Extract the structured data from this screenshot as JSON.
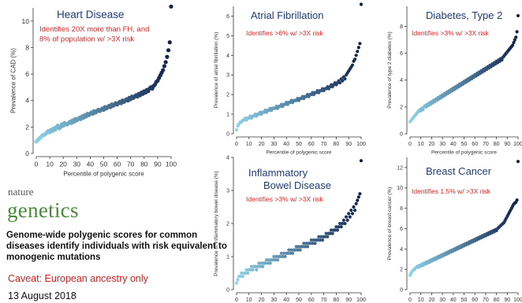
{
  "side": {
    "logo_line1": "nature",
    "logo_line2": "genetics",
    "paper_title": "Genome-wide polygenic scores for common diseases identify individuals with risk equivalent to monogenic mutations",
    "caveat": "Caveat: European ancestry only",
    "date": "13 August 2018"
  },
  "chart_data": [
    {
      "type": "scatter",
      "title": "Heart Disease",
      "annotation": "Identifies 20X more than FH, and 8% of population w/ >3X risk",
      "xlabel": "Percentile of polygenic score",
      "ylabel": "Prevalence of CAD (%)",
      "xlim": [
        0,
        100
      ],
      "ylim": [
        0,
        11
      ],
      "xticks": [
        0,
        10,
        20,
        30,
        40,
        50,
        60,
        70,
        80,
        90,
        100
      ],
      "yticks": [
        0,
        2,
        4,
        6,
        8,
        10
      ],
      "y": [
        0.9,
        1.0,
        1.1,
        1.2,
        1.3,
        1.4,
        1.4,
        1.5,
        1.6,
        1.7,
        1.6,
        1.8,
        1.7,
        1.9,
        1.8,
        2.0,
        2.1,
        1.9,
        2.0,
        2.2,
        2.1,
        2.3,
        2.2,
        2.2,
        2.3,
        2.4,
        2.3,
        2.5,
        2.4,
        2.6,
        2.5,
        2.6,
        2.7,
        2.6,
        2.8,
        2.7,
        2.9,
        2.8,
        3.0,
        2.9,
        3.0,
        3.1,
        3.0,
        3.2,
        3.1,
        3.2,
        3.3,
        3.2,
        3.3,
        3.4,
        3.3,
        3.5,
        3.4,
        3.5,
        3.6,
        3.5,
        3.7,
        3.6,
        3.7,
        3.8,
        3.7,
        3.8,
        3.9,
        3.8,
        4.0,
        3.9,
        4.0,
        4.1,
        4.0,
        4.2,
        4.1,
        4.3,
        4.2,
        4.3,
        4.4,
        4.3,
        4.5,
        4.4,
        4.6,
        4.5,
        4.7,
        4.6,
        4.8,
        4.7,
        4.9,
        5.0,
        4.9,
        5.1,
        5.2,
        5.4,
        5.5,
        5.7,
        5.9,
        6.1,
        6.3,
        6.6,
        6.9,
        7.3,
        7.8,
        8.4,
        11.1
      ]
    },
    {
      "type": "scatter",
      "title": "Atrial Fibrillation",
      "annotation": "Identifies >6% w/ >3X risk",
      "xlabel": "Percentile of polygenic score",
      "ylabel": "Prevalence of atrial fibrillation (%)",
      "xlim": [
        0,
        100
      ],
      "ylim": [
        0,
        6.5
      ],
      "xticks": [
        0,
        10,
        20,
        30,
        40,
        50,
        60,
        70,
        80,
        90,
        100
      ],
      "yticks": [
        0,
        1,
        2,
        3,
        4,
        5,
        6
      ],
      "y": [
        0.2,
        0.4,
        0.5,
        0.6,
        0.6,
        0.7,
        0.7,
        0.8,
        0.7,
        0.8,
        0.8,
        0.9,
        0.8,
        0.9,
        0.9,
        1.0,
        0.9,
        1.0,
        1.0,
        1.1,
        1.0,
        1.1,
        1.1,
        1.2,
        1.1,
        1.2,
        1.2,
        1.3,
        1.2,
        1.3,
        1.3,
        1.3,
        1.4,
        1.3,
        1.4,
        1.4,
        1.5,
        1.4,
        1.5,
        1.5,
        1.6,
        1.5,
        1.6,
        1.6,
        1.7,
        1.6,
        1.7,
        1.7,
        1.7,
        1.8,
        1.7,
        1.8,
        1.8,
        1.9,
        1.8,
        1.9,
        1.9,
        2.0,
        1.9,
        2.0,
        2.0,
        2.1,
        2.0,
        2.1,
        2.1,
        2.2,
        2.1,
        2.2,
        2.2,
        2.3,
        2.2,
        2.3,
        2.3,
        2.4,
        2.3,
        2.4,
        2.5,
        2.4,
        2.5,
        2.6,
        2.5,
        2.6,
        2.7,
        2.6,
        2.8,
        2.7,
        2.9,
        2.8,
        3.0,
        3.1,
        3.2,
        3.3,
        3.4,
        3.5,
        3.7,
        3.8,
        4.0,
        4.2,
        4.4,
        4.6,
        6.6
      ]
    },
    {
      "type": "scatter",
      "title": "Diabetes, Type 2",
      "annotation": "Identifies >3% w/ >3X risk",
      "xlabel": "Percentile of polygenic score",
      "ylabel": "Prevalence of type 2 diabetes (%)",
      "xlim": [
        0,
        100
      ],
      "ylim": [
        0,
        9.5
      ],
      "xticks": [
        0,
        10,
        20,
        30,
        40,
        50,
        60,
        70,
        80,
        90,
        100
      ],
      "yticks": [
        0,
        2,
        4,
        6,
        8
      ],
      "y": [
        0.9,
        1.0,
        1.1,
        1.2,
        1.3,
        1.4,
        1.5,
        1.6,
        1.7,
        1.8,
        1.7,
        1.9,
        1.8,
        2.0,
        2.1,
        2.0,
        2.2,
        2.1,
        2.3,
        2.2,
        2.4,
        2.3,
        2.5,
        2.4,
        2.6,
        2.5,
        2.7,
        2.6,
        2.8,
        2.7,
        2.9,
        2.8,
        3.0,
        2.9,
        3.1,
        3.0,
        3.2,
        3.1,
        3.3,
        3.2,
        3.4,
        3.3,
        3.5,
        3.4,
        3.6,
        3.5,
        3.7,
        3.6,
        3.8,
        3.7,
        3.9,
        3.8,
        4.0,
        3.9,
        4.1,
        4.0,
        4.2,
        4.1,
        4.3,
        4.2,
        4.4,
        4.3,
        4.5,
        4.4,
        4.6,
        4.5,
        4.7,
        4.6,
        4.8,
        4.7,
        4.9,
        4.8,
        5.0,
        4.9,
        5.1,
        5.0,
        5.2,
        5.1,
        5.3,
        5.2,
        5.4,
        5.3,
        5.5,
        5.4,
        5.6,
        5.5,
        5.7,
        5.8,
        5.9,
        6.0,
        6.1,
        6.2,
        6.3,
        6.4,
        6.5,
        6.6,
        6.8,
        7.0,
        7.2,
        7.6,
        8.8
      ]
    },
    {
      "type": "scatter",
      "title": "Inflammatory Bowel Disease",
      "annotation": "Identifies >3% w/ >3X risk",
      "xlabel": "Percentile of polygenic score",
      "ylabel": "Prevalence of inflammatory bowel disease (%)",
      "xlim": [
        0,
        100
      ],
      "ylim": [
        0,
        4
      ],
      "xticks": [
        0,
        10,
        20,
        30,
        40,
        50,
        60,
        70,
        80,
        90,
        100
      ],
      "yticks": [
        0,
        1,
        2,
        3,
        4
      ],
      "y": [
        0.2,
        0.3,
        0.4,
        0.4,
        0.5,
        0.4,
        0.5,
        0.5,
        0.6,
        0.5,
        0.6,
        0.6,
        0.7,
        0.6,
        0.7,
        0.7,
        0.6,
        0.7,
        0.8,
        0.7,
        0.8,
        0.7,
        0.8,
        0.8,
        0.9,
        0.8,
        0.9,
        0.8,
        0.9,
        0.9,
        1.0,
        0.9,
        1.0,
        0.9,
        1.0,
        1.0,
        1.1,
        1.0,
        1.1,
        1.0,
        1.1,
        1.1,
        1.2,
        1.1,
        1.2,
        1.1,
        1.2,
        1.2,
        1.3,
        1.2,
        1.3,
        1.2,
        1.3,
        1.3,
        1.4,
        1.3,
        1.4,
        1.3,
        1.4,
        1.4,
        1.5,
        1.4,
        1.5,
        1.4,
        1.5,
        1.5,
        1.6,
        1.5,
        1.6,
        1.5,
        1.6,
        1.6,
        1.7,
        1.6,
        1.7,
        1.7,
        1.8,
        1.7,
        1.8,
        1.8,
        1.9,
        1.8,
        1.9,
        2.0,
        1.9,
        2.0,
        2.1,
        2.0,
        2.2,
        2.1,
        2.3,
        2.2,
        2.4,
        2.3,
        2.5,
        2.4,
        2.6,
        2.7,
        2.8,
        2.9,
        3.9
      ]
    },
    {
      "type": "scatter",
      "title": "Breast Cancer",
      "annotation": "Identifies 1.5% w/ >3X risk",
      "xlabel": "Percentile of polygenic score",
      "ylabel": "Prevalence of breast cancer (%)",
      "xlim": [
        0,
        100
      ],
      "ylim": [
        0,
        13
      ],
      "xticks": [
        0,
        10,
        20,
        30,
        40,
        50,
        60,
        70,
        80,
        90,
        100
      ],
      "yticks": [
        0,
        2,
        4,
        6,
        8,
        10,
        12
      ],
      "y": [
        1.4,
        1.6,
        1.8,
        1.9,
        2.0,
        2.1,
        2.2,
        2.3,
        2.2,
        2.4,
        2.3,
        2.5,
        2.4,
        2.6,
        2.5,
        2.7,
        2.6,
        2.8,
        2.7,
        2.9,
        2.8,
        3.0,
        2.9,
        3.1,
        3.0,
        3.2,
        3.1,
        3.3,
        3.2,
        3.4,
        3.3,
        3.5,
        3.4,
        3.6,
        3.5,
        3.7,
        3.6,
        3.8,
        3.7,
        3.9,
        3.8,
        4.0,
        3.9,
        4.1,
        4.0,
        4.2,
        4.1,
        4.3,
        4.2,
        4.4,
        4.3,
        4.5,
        4.4,
        4.6,
        4.5,
        4.7,
        4.6,
        4.8,
        4.7,
        4.9,
        4.8,
        5.0,
        4.9,
        5.1,
        5.0,
        5.2,
        5.1,
        5.3,
        5.2,
        5.4,
        5.3,
        5.5,
        5.4,
        5.6,
        5.5,
        5.7,
        5.6,
        5.8,
        5.7,
        5.9,
        5.8,
        6.0,
        6.1,
        6.2,
        6.3,
        6.4,
        6.5,
        6.6,
        6.8,
        7.0,
        7.2,
        7.4,
        7.6,
        7.8,
        8.0,
        8.2,
        8.4,
        8.5,
        8.6,
        8.8,
        12.6
      ]
    }
  ],
  "colors": {
    "title": "#1f3b7a",
    "annotation": "#e02424",
    "low": "#8fd3e8",
    "high": "#0e1f4a",
    "axis": "#333333"
  }
}
